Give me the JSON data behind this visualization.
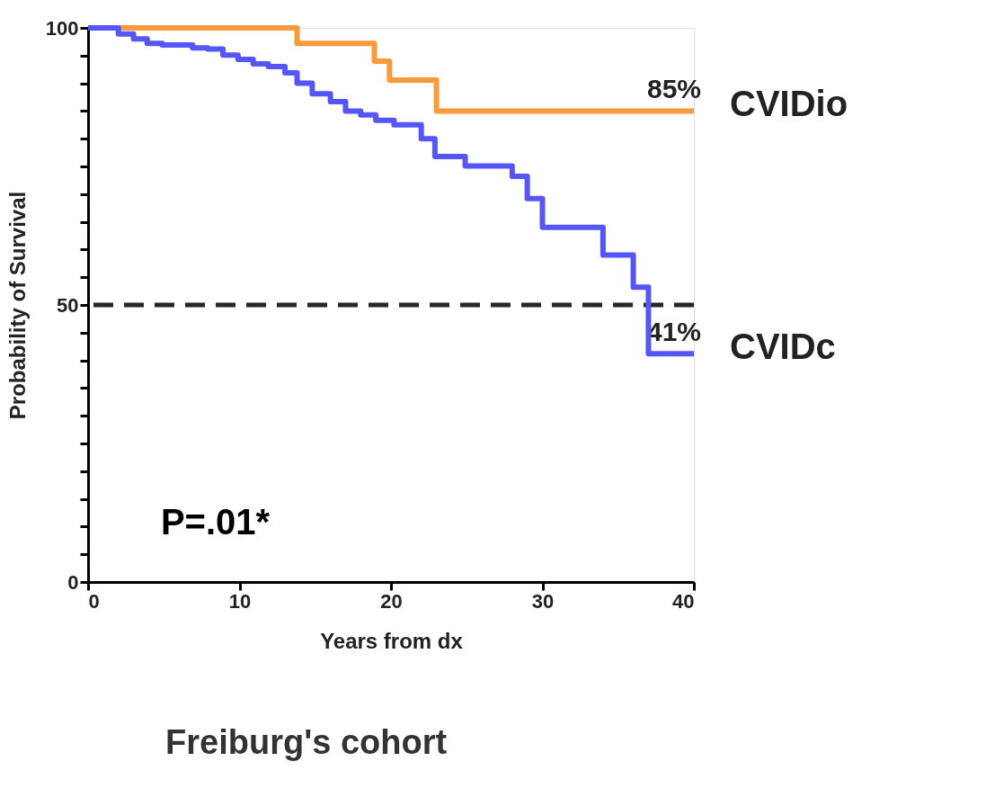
{
  "chart_data": {
    "type": "step",
    "xlabel": "Years from dx",
    "ylabel": "Probability of Survival",
    "xlim": [
      0,
      40
    ],
    "xticks": [
      0,
      10,
      20,
      30,
      40
    ],
    "ylim": [
      0,
      100
    ],
    "yticks": [
      0,
      {
        "value": 5,
        "label": null
      },
      {
        "value": 10,
        "label": null
      },
      {
        "value": 15,
        "label": null
      },
      {
        "value": 20,
        "label": null
      },
      {
        "value": 25,
        "label": null
      },
      {
        "value": 30,
        "label": null
      },
      {
        "value": 35,
        "label": null
      },
      {
        "value": 40,
        "label": null
      },
      {
        "value": 45,
        "label": null
      },
      50,
      {
        "value": 55,
        "label": null
      },
      {
        "value": 60,
        "label": null
      },
      {
        "value": 65,
        "label": null
      },
      {
        "value": 70,
        "label": null
      },
      {
        "value": 75,
        "label": null
      },
      {
        "value": 80,
        "label": null
      },
      {
        "value": 85,
        "label": null
      },
      {
        "value": 90,
        "label": null
      },
      {
        "value": 95,
        "label": null
      },
      100
    ],
    "grid": false,
    "legend": false,
    "line_style": "solid",
    "marker": "none",
    "series": [
      {
        "name": "CVIDio",
        "color": "#fb9a3c",
        "x": [
          0,
          13.8,
          18.9,
          19.9,
          23,
          40
        ],
        "values": [
          100,
          97.2,
          94,
          90.6,
          85,
          85
        ]
      },
      {
        "name": "CVIDc",
        "color": "#5556f5",
        "x": [
          0,
          2,
          3,
          3.9,
          4.9,
          6.9,
          7.9,
          8.9,
          9.9,
          10.9,
          11.9,
          13,
          13.8,
          14.8,
          16,
          17,
          18,
          19,
          20.2,
          22,
          22.9,
          24.9,
          28,
          29,
          30,
          34,
          36,
          37,
          40
        ],
        "values": [
          100,
          98.9,
          98,
          97.2,
          96.9,
          96.4,
          96.2,
          95.1,
          94.3,
          93.5,
          93,
          91.9,
          90,
          88.1,
          86.7,
          85,
          84.3,
          83.3,
          82.5,
          80,
          76.8,
          75.1,
          73.2,
          69.2,
          64,
          59,
          53.2,
          41.2,
          41.2
        ]
      }
    ],
    "ref_lines": [
      {
        "axis": "y",
        "value": 50,
        "line_style": "dashed",
        "color": "#262626"
      }
    ],
    "annotations": [
      {
        "text": "85%",
        "x": 40,
        "y": 85
      },
      {
        "text": "41%",
        "x": 40,
        "y": 41.2
      },
      "P=.01*",
      "Freiburg's cohort"
    ]
  }
}
